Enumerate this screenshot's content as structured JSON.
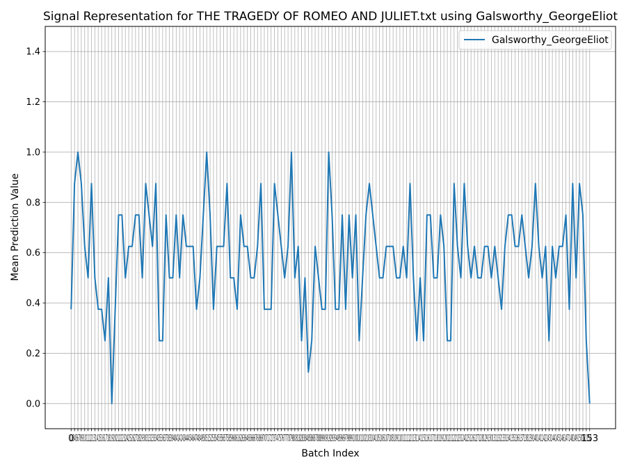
{
  "chart_data": {
    "type": "line",
    "title": "Signal Representation for THE TRAGEDY OF ROMEO AND JULIET.txt using Galsworthy_GeorgeEliot",
    "xlabel": "Batch Index",
    "ylabel": "Mean Prediction Value",
    "xlim": [
      -7.65,
      160.65
    ],
    "ylim": [
      -0.1,
      1.5
    ],
    "yticks": [
      0.0,
      0.2,
      0.4,
      0.6,
      0.8,
      1.0,
      1.2,
      1.4
    ],
    "ytick_labels": [
      "0.0",
      "0.2",
      "0.4",
      "0.6",
      "0.8",
      "1.0",
      "1.2",
      "1.4"
    ],
    "x_tick_count": 154,
    "x_tick_labels_rendered": "0123456789101112131415161718192021222324252627282930313233343536373839404142434445464748495051525354555657585960616263646566676869707172737475767778798081828384858687888990919293949596979899100101102103104105106107108109110111112113114115116117118119120121122123124125126127128129130131132133134135136137138139140141142143144145146147148149150151152153",
    "x_ticklabel_segments": [
      {
        "text": "0",
        "x": 0
      },
      {
        "text": "123456789101112131415161718192021222324252627282930313233343536373839404142434445464748495051525354555657585960616263646566676869707172737475767778798081828384858687888990919293949596979899100101102103104105106107108109110111112113114115116117118119120121122123124125126127128129130131132133134135136137138139140141142143144145146147148149150151152",
        "x": 76.5
      },
      {
        "text": "153",
        "x": 153
      }
    ],
    "grid": true,
    "legend_position": "upper right",
    "series": [
      {
        "name": "Galsworthy_GeorgeEliot",
        "color": "#1f77b4",
        "values": [
          0.375,
          0.875,
          1.0,
          0.875,
          0.625,
          0.5,
          0.875,
          0.5,
          0.375,
          0.375,
          0.25,
          0.5,
          0.0,
          0.375,
          0.75,
          0.75,
          0.5,
          0.625,
          0.625,
          0.75,
          0.75,
          0.5,
          0.875,
          0.75,
          0.625,
          0.875,
          0.25,
          0.25,
          0.75,
          0.5,
          0.5,
          0.75,
          0.5,
          0.75,
          0.625,
          0.625,
          0.625,
          0.375,
          0.5,
          0.75,
          1.0,
          0.75,
          0.375,
          0.625,
          0.625,
          0.625,
          0.875,
          0.5,
          0.5,
          0.375,
          0.75,
          0.625,
          0.625,
          0.5,
          0.5,
          0.625,
          0.875,
          0.375,
          0.375,
          0.375,
          0.875,
          0.75,
          0.625,
          0.5,
          0.625,
          1.0,
          0.5,
          0.625,
          0.25,
          0.5,
          0.125,
          0.25,
          0.625,
          0.5,
          0.375,
          0.375,
          1.0,
          0.75,
          0.375,
          0.375,
          0.75,
          0.375,
          0.75,
          0.5,
          0.75,
          0.25,
          0.5,
          0.75,
          0.875,
          0.75,
          0.625,
          0.5,
          0.5,
          0.625,
          0.625,
          0.625,
          0.5,
          0.5,
          0.625,
          0.5,
          0.875,
          0.5,
          0.25,
          0.5,
          0.25,
          0.75,
          0.75,
          0.5,
          0.5,
          0.75,
          0.625,
          0.25,
          0.25,
          0.875,
          0.625,
          0.5,
          0.875,
          0.625,
          0.5,
          0.625,
          0.5,
          0.5,
          0.625,
          0.625,
          0.5,
          0.625,
          0.5,
          0.375,
          0.625,
          0.75,
          0.75,
          0.625,
          0.625,
          0.75,
          0.625,
          0.5,
          0.625,
          0.875,
          0.625,
          0.5,
          0.625,
          0.25,
          0.625,
          0.5,
          0.625,
          0.625,
          0.75,
          0.375,
          0.875,
          0.5,
          0.875,
          0.75,
          0.25,
          0.0
        ]
      }
    ]
  }
}
